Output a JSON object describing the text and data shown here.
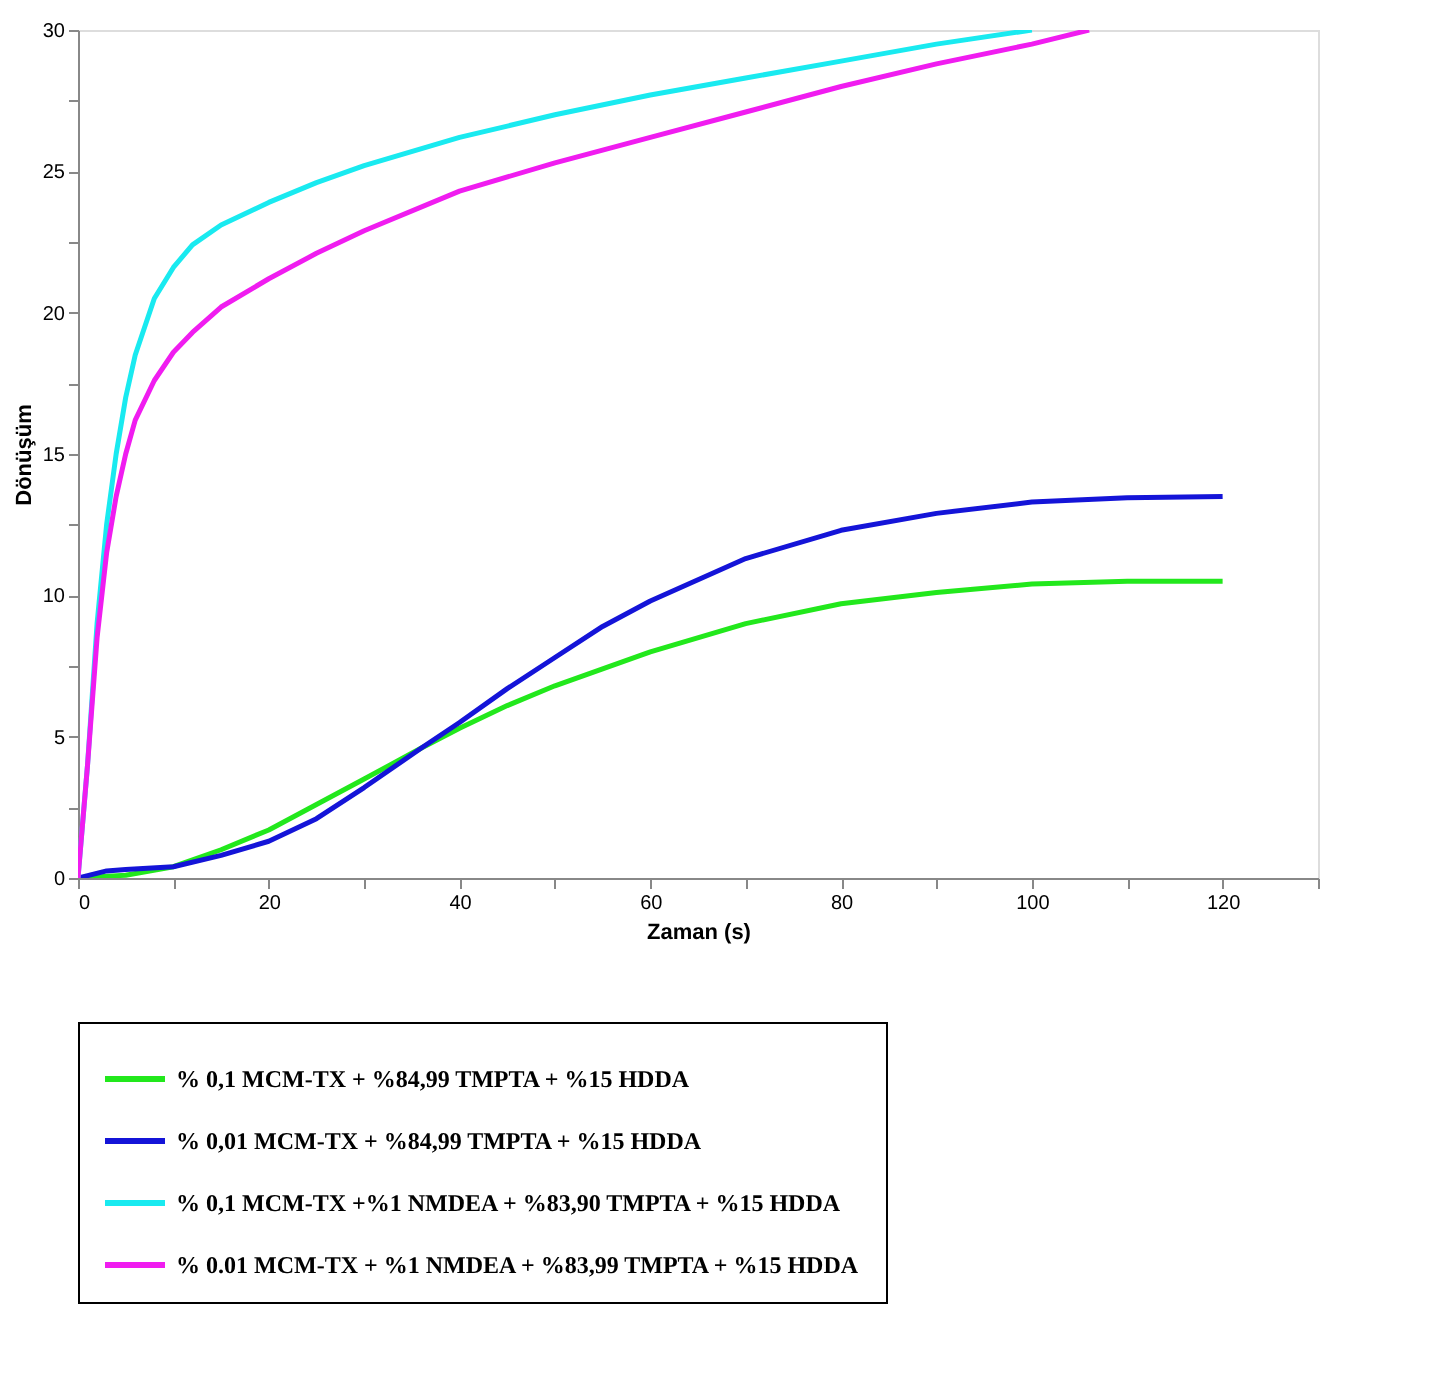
{
  "chart_data": {
    "type": "line",
    "xlabel": "Zaman (s)",
    "ylabel": "Dönüşüm",
    "xlim": [
      0,
      130
    ],
    "ylim": [
      0,
      30
    ],
    "xticks": [
      0,
      {
        "value": 10,
        "label": null
      },
      20,
      {
        "value": 30,
        "label": null
      },
      40,
      {
        "value": 50,
        "label": null
      },
      60,
      {
        "value": 70,
        "label": null
      },
      80,
      {
        "value": 90,
        "label": null
      },
      100,
      {
        "value": 110,
        "label": null
      },
      120,
      {
        "value": 130,
        "label": null
      }
    ],
    "yticks": [
      0,
      {
        "value": 2.5,
        "label": null
      },
      5,
      {
        "value": 7.5,
        "label": null
      },
      10,
      {
        "value": 12.5,
        "label": null
      },
      15,
      {
        "value": 17.5,
        "label": null
      },
      20,
      {
        "value": 22.5,
        "label": null
      },
      25,
      {
        "value": 27.5,
        "label": null
      },
      30
    ],
    "grid": false,
    "legend": "bottom",
    "line_style": "solid",
    "marker": "none",
    "series": [
      {
        "name": "% 0,1   MCM-TX + %84,99 TMPTA + %15 HDDA",
        "color": "#22e81c",
        "x": [
          0,
          5,
          10,
          15,
          20,
          25,
          30,
          36,
          40,
          45,
          50,
          55,
          60,
          70,
          80,
          90,
          100,
          110,
          120
        ],
        "values": [
          0,
          0.1,
          0.4,
          1.0,
          1.7,
          2.6,
          3.5,
          4.6,
          5.3,
          6.1,
          6.8,
          7.4,
          8.0,
          9.0,
          9.7,
          10.1,
          10.4,
          10.5,
          10.5
        ]
      },
      {
        "name": "% 0,01 MCM-TX + %84,99 TMPTA + %15 HDDA",
        "color": "#1414d8",
        "x": [
          0,
          3,
          5,
          10,
          15,
          20,
          25,
          30,
          36,
          40,
          45,
          50,
          55,
          60,
          70,
          80,
          90,
          100,
          110,
          120
        ],
        "values": [
          0,
          0.25,
          0.3,
          0.4,
          0.8,
          1.3,
          2.1,
          3.2,
          4.6,
          5.5,
          6.7,
          7.8,
          8.9,
          9.8,
          11.3,
          12.3,
          12.9,
          13.3,
          13.45,
          13.5
        ]
      },
      {
        "name": "% 0,1   MCM-TX +%1 NMDEA +  %83,90 TMPTA + %15 HDDA",
        "color": "#19eaf0",
        "x": [
          0,
          1,
          2,
          3,
          4,
          5,
          6,
          8,
          10,
          12,
          15,
          20,
          25,
          30,
          40,
          50,
          60,
          70,
          80,
          90,
          100
        ],
        "values": [
          0,
          4,
          9,
          12.5,
          15,
          17,
          18.5,
          20.5,
          21.6,
          22.4,
          23.1,
          23.9,
          24.6,
          25.2,
          26.2,
          27.0,
          27.7,
          28.3,
          28.9,
          29.5,
          30
        ]
      },
      {
        "name": "% 0.01 MCM-TX + %1 NMDEA + %83,99 TMPTA + %15 HDDA",
        "color": "#f01cf0",
        "x": [
          0,
          1,
          2,
          3,
          4,
          5,
          6,
          8,
          10,
          12,
          15,
          20,
          25,
          30,
          40,
          50,
          60,
          70,
          80,
          90,
          100,
          106
        ],
        "values": [
          0,
          4,
          8.5,
          11.5,
          13.5,
          15,
          16.2,
          17.6,
          18.6,
          19.3,
          20.2,
          21.2,
          22.1,
          22.9,
          24.3,
          25.3,
          26.2,
          27.1,
          28.0,
          28.8,
          29.5,
          30
        ]
      }
    ]
  }
}
